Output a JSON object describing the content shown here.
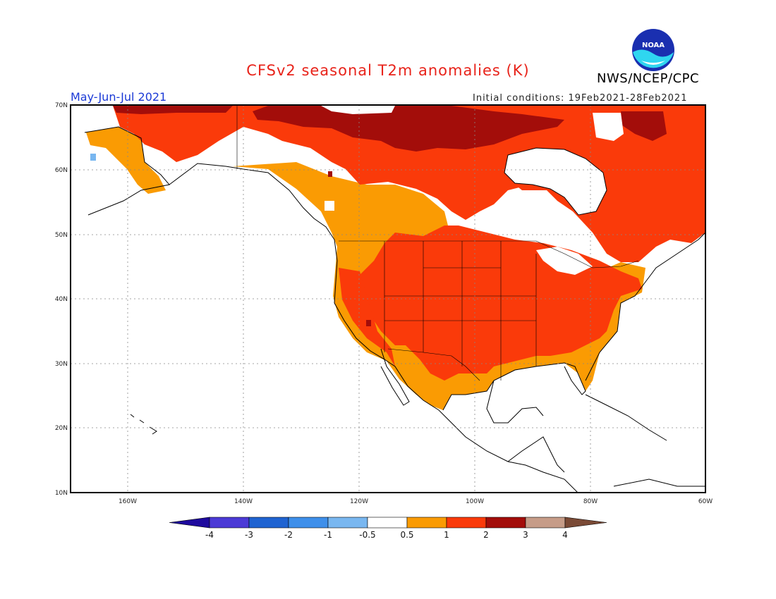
{
  "header": {
    "title": "CFSv2 seasonal T2m anomalies (K)",
    "agency": "NWS/NCEP/CPC",
    "season": "May-Jun-Jul 2021",
    "initial_conditions": "Initial conditions: 19Feb2021-28Feb2021",
    "logo_text": "NOAA"
  },
  "axes": {
    "lat_labels": [
      "70N",
      "60N",
      "50N",
      "40N",
      "30N",
      "20N",
      "10N"
    ],
    "lon_labels": [
      "160W",
      "140W",
      "120W",
      "100W",
      "80W",
      "60W"
    ]
  },
  "colorbar": {
    "tick_labels": [
      "-4",
      "-3",
      "-2",
      "-1",
      "-0.5",
      "0.5",
      "1",
      "2",
      "3",
      "4"
    ],
    "colors": [
      "#1e0a9e",
      "#4b3ad6",
      "#1f63d1",
      "#3e8fea",
      "#79b7f0",
      "#ffffff",
      "#fa9b03",
      "#fa3a0a",
      "#a30d0a",
      "#c69c88",
      "#7a4a36"
    ]
  },
  "colors": {
    "c05": "#fa9b03",
    "c1": "#fa3a0a",
    "c2": "#a30d0a",
    "cneg": "#79b7f0"
  }
}
